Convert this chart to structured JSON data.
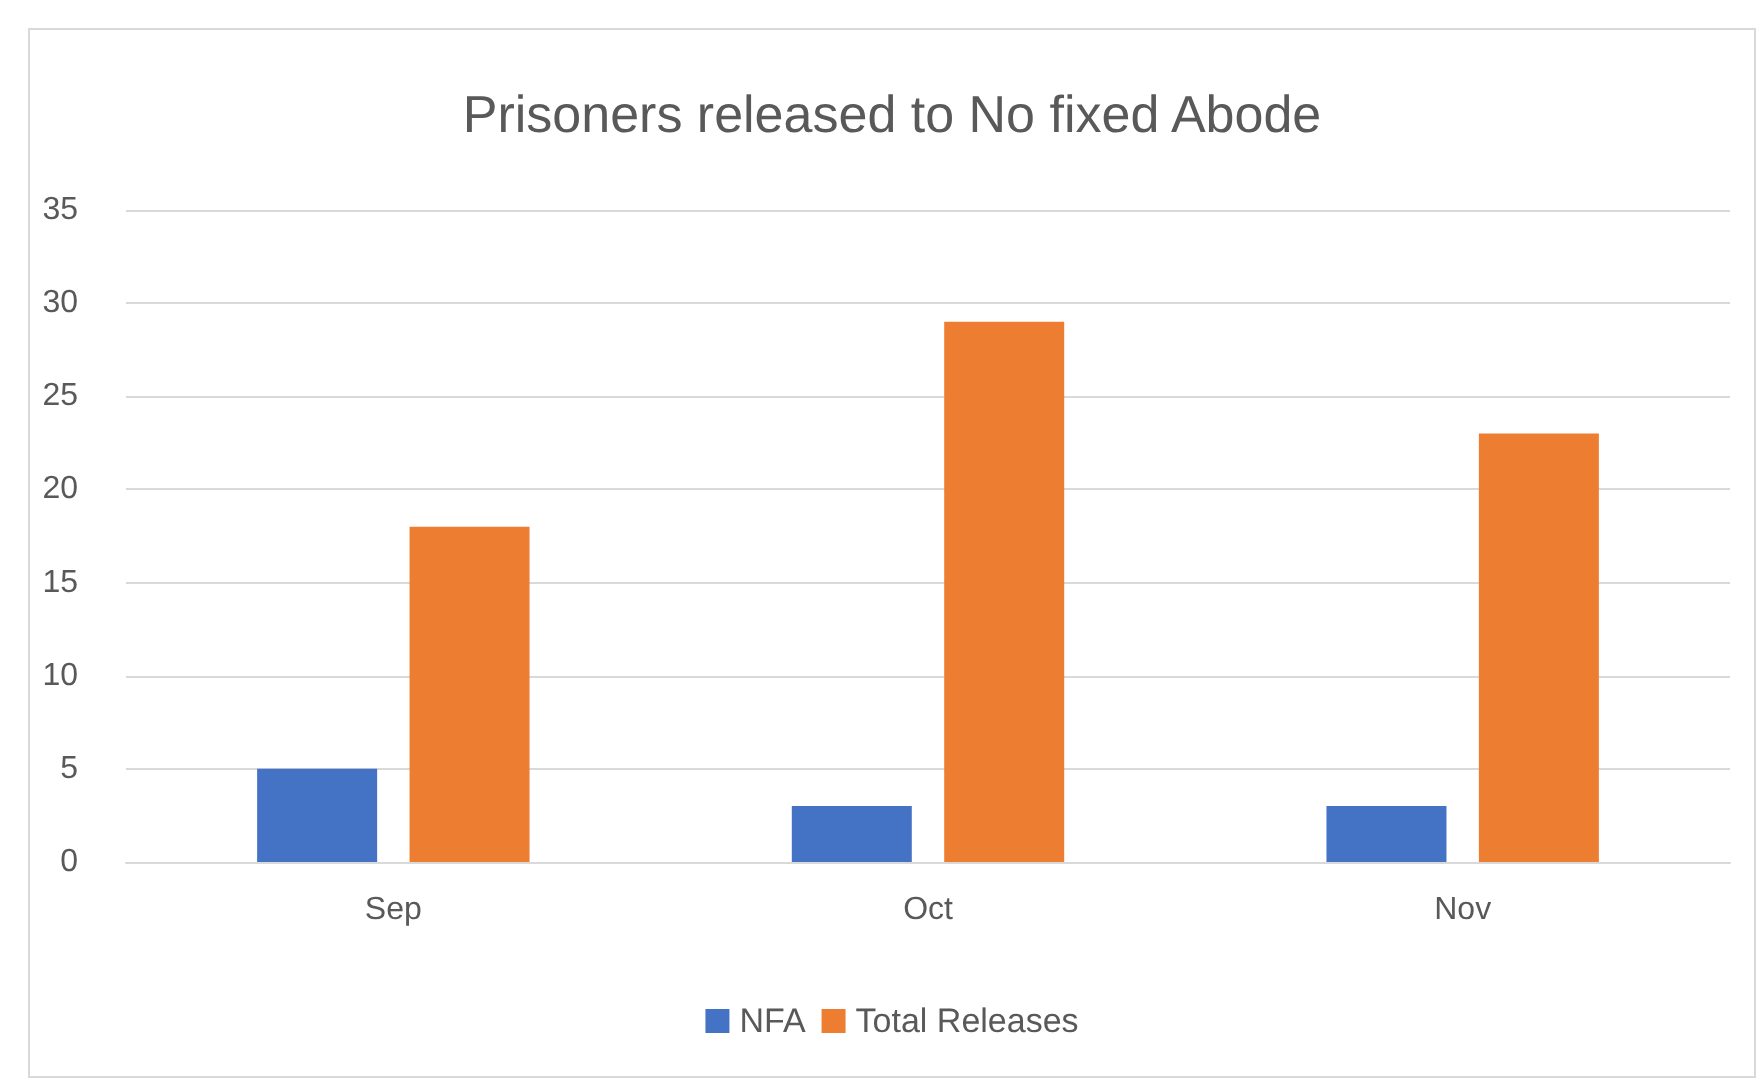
{
  "chart_data": {
    "type": "bar",
    "title": "Prisoners released to No fixed Abode",
    "categories": [
      "Sep",
      "Oct",
      "Nov"
    ],
    "series": [
      {
        "name": "NFA",
        "color": "#4472c4",
        "values": [
          5,
          3,
          3
        ]
      },
      {
        "name": "Total Releases",
        "color": "#ed7d31",
        "values": [
          18,
          29,
          23
        ]
      }
    ],
    "ylim": [
      0,
      35
    ],
    "yticks": [
      0,
      5,
      10,
      15,
      20,
      25,
      30,
      35
    ],
    "grid": "y",
    "legend": "bottom"
  }
}
